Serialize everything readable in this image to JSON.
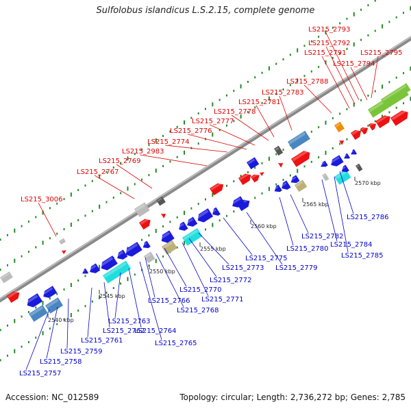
{
  "title": "Sulfolobus islandicus L.S.2.15, complete genome",
  "footer": {
    "accession": "Accession: NC_012589",
    "topology": "Topology: circular; Length: 2,736,272 bp; Genes: 2,785"
  },
  "colors": {
    "forward_label": "#e00000",
    "reverse_label": "#0000cc",
    "backbone": "#8a8a8a",
    "grid_tick": "#228b22",
    "gene_red": "#ee1111",
    "gene_blue": "#1a1adc",
    "gene_steelblue": "#4a86c0",
    "gene_cyan": "#22dddd",
    "gene_gray": "#bbbbbb",
    "gene_darkgray": "#555555",
    "gene_khaki": "#bbb077",
    "gene_orange": "#f08c00",
    "gene_green": "#7ac43a"
  },
  "scale_ticks": [
    "2540 kbp",
    "2545 kbp",
    "2550 kbp",
    "2555 kbp",
    "2560 kbp",
    "2565 kbp",
    "2570 kbp"
  ],
  "forward_labels": [
    "LS215_3006",
    "LS215_2767",
    "LS215_2769",
    "LS215_2983",
    "LS215_2774",
    "LS215_2776",
    "LS215_2777",
    "LS215_2778",
    "LS215_2781",
    "LS215_2783",
    "LS215_2788",
    "LS215_2791",
    "LS215_2792",
    "LS215_2793",
    "LS215_2794",
    "LS215_2795"
  ],
  "reverse_labels": [
    "LS215_2757",
    "LS215_2758",
    "LS215_2759",
    "LS215_2761",
    "LS215_2762",
    "LS215_2763",
    "LS215_2764",
    "LS215_2765",
    "LS215_2766",
    "LS215_2768",
    "LS215_2770",
    "LS215_2771",
    "LS215_2772",
    "LS215_2773",
    "LS215_2775",
    "LS215_2779",
    "LS215_2780",
    "LS215_2782",
    "LS215_2784",
    "LS215_2785",
    "LS215_2786"
  ]
}
